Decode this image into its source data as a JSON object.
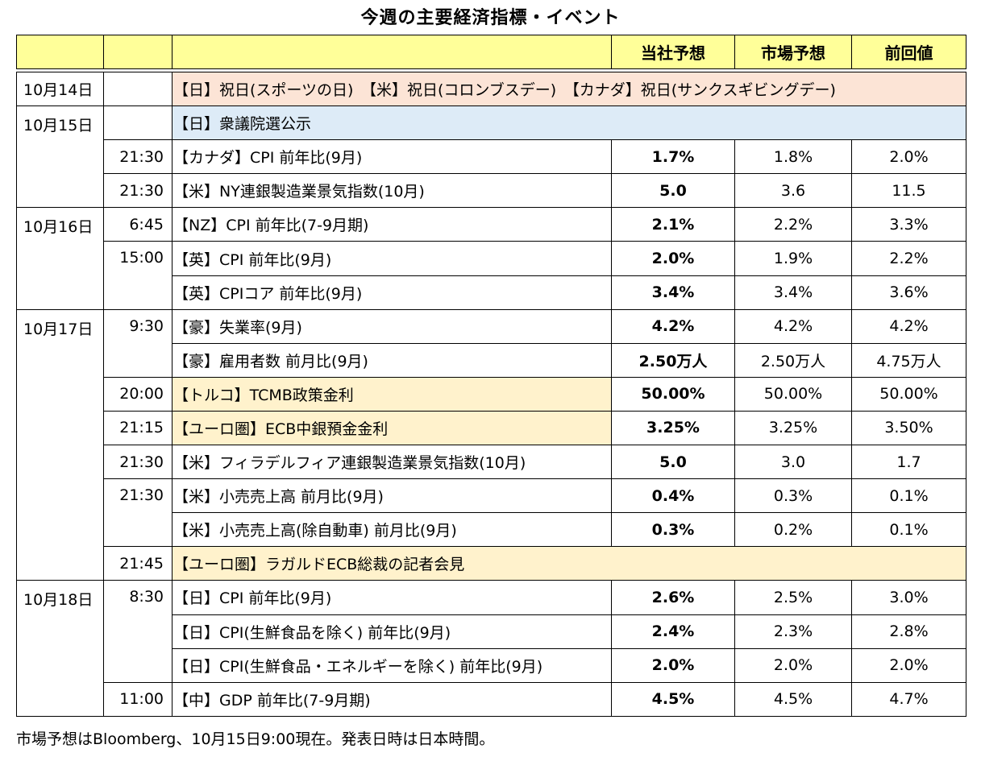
{
  "title": "今週の主要経済指標・イベント",
  "headers": {
    "own": "当社予想",
    "market": "市場予想",
    "prev": "前回値"
  },
  "rows": [
    {
      "date": "10月14日",
      "time": "",
      "event": "【日】祝日(スポーツの日)　【米】祝日(コロンブスデー)　【カナダ】祝日(サンクスギビングデー)",
      "own": "",
      "market": "",
      "prev": ""
    },
    {
      "date": "10月15日",
      "time": "",
      "event": "【日】衆議院選公示",
      "own": "",
      "market": "",
      "prev": ""
    },
    {
      "date": "",
      "time": "21:30",
      "event": "【カナダ】CPI 前年比(9月)",
      "own": "1.7%",
      "market": "1.8%",
      "prev": "2.0%"
    },
    {
      "date": "",
      "time": "21:30",
      "event": "【米】NY連銀製造業景気指数(10月)",
      "own": "5.0",
      "market": "3.6",
      "prev": "11.5"
    },
    {
      "date": "10月16日",
      "time": "6:45",
      "event": "【NZ】CPI 前年比(7-9月期)",
      "own": "2.1%",
      "market": "2.2%",
      "prev": "3.3%"
    },
    {
      "date": "",
      "time": "15:00",
      "event": "【英】CPI 前年比(9月)",
      "own": "2.0%",
      "market": "1.9%",
      "prev": "2.2%"
    },
    {
      "date": "",
      "time": "",
      "event": "【英】CPIコア 前年比(9月)",
      "own": "3.4%",
      "market": "3.4%",
      "prev": "3.6%"
    },
    {
      "date": "10月17日",
      "time": "9:30",
      "event": "【豪】失業率(9月)",
      "own": "4.2%",
      "market": "4.2%",
      "prev": "4.2%"
    },
    {
      "date": "",
      "time": "",
      "event": "【豪】雇用者数 前月比(9月)",
      "own": "2.50万人",
      "market": "2.50万人",
      "prev": "4.75万人"
    },
    {
      "date": "",
      "time": "20:00",
      "event": "【トルコ】TCMB政策金利",
      "own": "50.00%",
      "market": "50.00%",
      "prev": "50.00%"
    },
    {
      "date": "",
      "time": "21:15",
      "event": "【ユーロ圏】ECB中銀預金金利",
      "own": "3.25%",
      "market": "3.25%",
      "prev": "3.50%"
    },
    {
      "date": "",
      "time": "21:30",
      "event": "【米】フィラデルフィア連銀製造業景気指数(10月)",
      "own": "5.0",
      "market": "3.0",
      "prev": "1.7"
    },
    {
      "date": "",
      "time": "21:30",
      "event": "【米】小売売上高 前月比(9月)",
      "own": "0.4%",
      "market": "0.3%",
      "prev": "0.1%"
    },
    {
      "date": "",
      "time": "",
      "event": "【米】小売売上高(除自動車) 前月比(9月)",
      "own": "0.3%",
      "market": "0.2%",
      "prev": "0.1%"
    },
    {
      "date": "",
      "time": "21:45",
      "event": "【ユーロ圏】ラガルドECB総裁の記者会見",
      "own": "",
      "market": "",
      "prev": ""
    },
    {
      "date": "10月18日",
      "time": "8:30",
      "event": "【日】CPI 前年比(9月)",
      "own": "2.6%",
      "market": "2.5%",
      "prev": "3.0%"
    },
    {
      "date": "",
      "time": "",
      "event": "【日】CPI(生鮮食品を除く) 前年比(9月)",
      "own": "2.4%",
      "market": "2.3%",
      "prev": "2.8%"
    },
    {
      "date": "",
      "time": "",
      "event": "【日】CPI(生鮮食品・エネルギーを除く) 前年比(9月)",
      "own": "2.0%",
      "market": "2.0%",
      "prev": "2.0%"
    },
    {
      "date": "",
      "time": "11:00",
      "event": "【中】GDP 前年比(7-9月期)",
      "own": "4.5%",
      "market": "4.5%",
      "prev": "4.7%"
    }
  ],
  "note": "市場予想はBloomberg、10月15日9:00現在。発表日時は日本時間。",
  "colors": {
    "header": "#ffff99",
    "holiday": "#fce4d6",
    "japan_event": "#ddebf7",
    "highlight": "#fff2cc"
  }
}
